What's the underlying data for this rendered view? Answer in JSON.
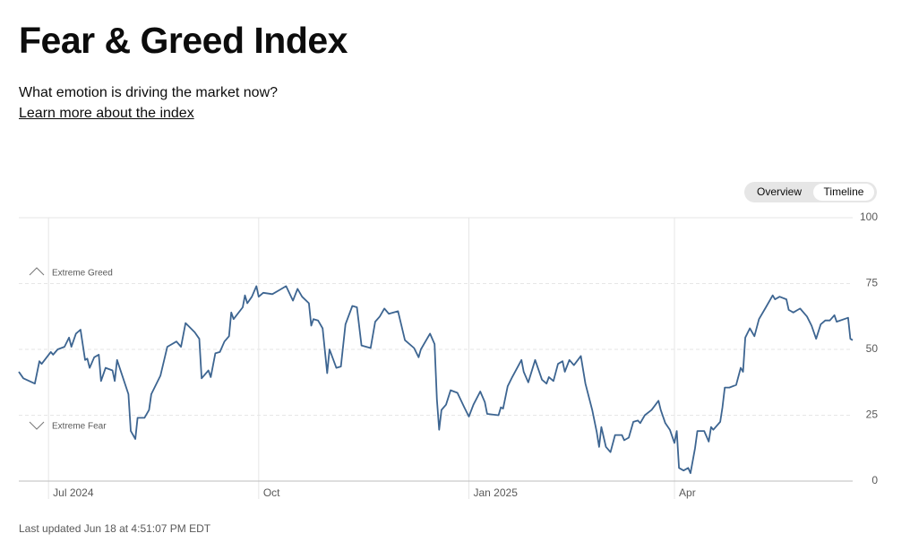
{
  "header": {
    "title": "Fear & Greed Index",
    "subtitle": "What emotion is driving the market now?",
    "link": "Learn more about the index"
  },
  "toggle": {
    "options": [
      "Overview",
      "Timeline"
    ]
  },
  "footer": {
    "updated": "Last updated Jun 18 at 4:51:07 PM EDT"
  },
  "chart_data": {
    "type": "line",
    "color": "#3d6591",
    "annotations": {
      "greed": "Extreme Greed",
      "fear": "Extreme Fear"
    },
    "ylim": [
      0,
      100
    ],
    "yticks": [
      0,
      25,
      50,
      75,
      100
    ],
    "xlim": [
      0,
      365
    ],
    "xticks": [
      {
        "value": 13,
        "label": "Jul 2024"
      },
      {
        "value": 105,
        "label": "Oct"
      },
      {
        "value": 197,
        "label": "Jan 2025"
      },
      {
        "value": 287,
        "label": "Apr"
      }
    ],
    "x": [
      0,
      2,
      7,
      9,
      10,
      14,
      15,
      17,
      20,
      22,
      23,
      25,
      27,
      29,
      30,
      31,
      33,
      35,
      36,
      38,
      41,
      42,
      43,
      48,
      49,
      51,
      52,
      55,
      57,
      58,
      62,
      65,
      69,
      71,
      73,
      77,
      79,
      80,
      83,
      84,
      86,
      88,
      90,
      92,
      93,
      94,
      98,
      99,
      100,
      102,
      104,
      105,
      107,
      111,
      114,
      117,
      120,
      122,
      124,
      127,
      128,
      129,
      131,
      133,
      135,
      136,
      139,
      141,
      143,
      146,
      148,
      150,
      154,
      156,
      158,
      160,
      162,
      166,
      169,
      173,
      175,
      176,
      180,
      182,
      183,
      184,
      185,
      187,
      189,
      192,
      195,
      197,
      199,
      202,
      204,
      205,
      210,
      211,
      212,
      214,
      216,
      220,
      221,
      223,
      226,
      229,
      231,
      232,
      234,
      236,
      238,
      239,
      241,
      243,
      246,
      248,
      251,
      253,
      254,
      255,
      257,
      259,
      261,
      264,
      265,
      267,
      269,
      271,
      272,
      274,
      277,
      280,
      281,
      283,
      285,
      287,
      288,
      289,
      291,
      293,
      294,
      296,
      297,
      300,
      302,
      303,
      304,
      307,
      308,
      309,
      311,
      314,
      316,
      317,
      318,
      320,
      322,
      324,
      327,
      330,
      331,
      333,
      336,
      337,
      339,
      342,
      345,
      347,
      349,
      351,
      353,
      355,
      357,
      358,
      363,
      364,
      365
    ],
    "values": [
      41.5,
      39,
      37,
      45.5,
      44.5,
      49,
      48,
      50,
      51,
      54.5,
      51,
      56,
      57.5,
      46,
      46.5,
      43,
      47,
      48,
      38,
      43,
      42,
      38,
      46,
      33,
      19,
      16,
      24,
      24,
      27,
      33,
      40,
      51,
      53,
      51,
      60,
      56.5,
      54,
      39,
      42,
      39.5,
      48.5,
      49,
      53,
      55,
      64,
      61.5,
      66,
      70.5,
      67.5,
      70,
      74,
      70,
      71.5,
      71,
      72.5,
      74,
      68.5,
      73,
      70,
      67.5,
      59,
      61.5,
      61,
      58,
      41,
      50,
      43,
      43.5,
      59.5,
      66.5,
      66,
      51.5,
      50.5,
      60.5,
      62.5,
      65.5,
      63.5,
      64.5,
      53.5,
      50.5,
      47,
      50,
      56,
      52,
      31,
      19.5,
      27,
      29,
      34.5,
      33.5,
      28,
      24.5,
      29,
      34,
      30,
      25.5,
      25,
      28,
      27.5,
      36,
      39.5,
      46,
      41.5,
      37.5,
      46,
      38.5,
      37,
      39.5,
      38,
      44.5,
      45.5,
      41.5,
      46,
      44,
      47.5,
      37,
      27,
      18.5,
      13,
      20.5,
      13,
      11,
      17.5,
      17.5,
      15.5,
      16.5,
      22.5,
      23,
      22,
      25,
      27,
      30.5,
      27,
      22,
      19.5,
      14.5,
      19,
      5,
      4,
      5,
      3,
      12.5,
      19,
      19,
      15,
      20.5,
      19.5,
      22.5,
      28,
      35.5,
      35.5,
      36.5,
      43,
      41.5,
      54.5,
      58,
      55,
      61.5,
      66,
      70.5,
      69,
      70,
      69,
      65,
      64,
      65.5,
      62.5,
      59,
      54,
      59.5,
      61,
      61,
      63,
      60.5,
      62,
      54,
      53.5
    ]
  }
}
